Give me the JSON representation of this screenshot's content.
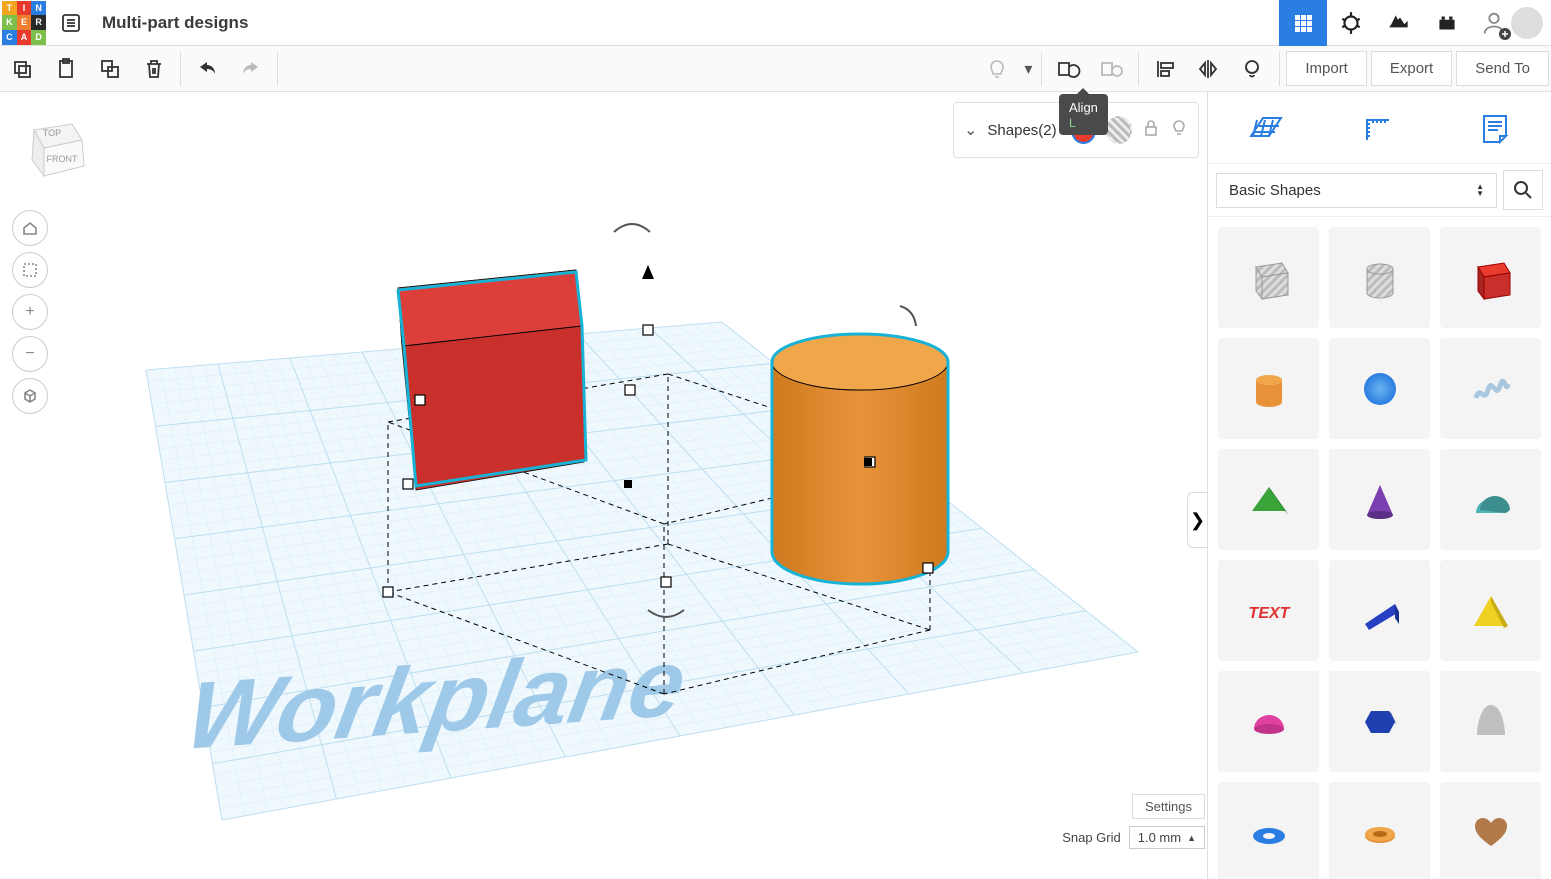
{
  "logo": {
    "cells": [
      {
        "t": "T",
        "c": "#f5a51d"
      },
      {
        "t": "I",
        "c": "#e83b2e"
      },
      {
        "t": "N",
        "c": "#2a7de1"
      },
      {
        "t": "K",
        "c": "#7cc04b"
      },
      {
        "t": "E",
        "c": "#ef7f2f"
      },
      {
        "t": "R",
        "c": "#2a2a2a"
      },
      {
        "t": "C",
        "c": "#2a7de1"
      },
      {
        "t": "A",
        "c": "#e83b2e"
      },
      {
        "t": "D",
        "c": "#7cc04b"
      }
    ]
  },
  "project": {
    "title": "Multi-part designs"
  },
  "header_apps": [
    {
      "name": "bricks",
      "active": true
    },
    {
      "name": "circuits",
      "active": false
    },
    {
      "name": "codeblocks",
      "active": false
    },
    {
      "name": "lego",
      "active": false
    }
  ],
  "toolbar": {
    "copy": "Copy",
    "paste": "Paste",
    "dup": "Duplicate",
    "delete": "Delete",
    "undo": "Undo",
    "redo": "Redo",
    "bulb": "Show/Hide",
    "group": "Group",
    "ungroup": "Ungroup",
    "align": "Align",
    "mirror": "Mirror",
    "cruise": "Cruise",
    "import": "Import",
    "export": "Export",
    "sendto": "Send To"
  },
  "tooltip": {
    "title": "Align",
    "key": "L"
  },
  "viewcube": {
    "top": "TOP",
    "front": "FRONT"
  },
  "nav": [
    "home",
    "fit",
    "zoom-in",
    "zoom-out",
    "ortho"
  ],
  "inspector": {
    "label": "Shapes(2)",
    "solid_color": "#e83b2e"
  },
  "workplane": {
    "label": "Workplane",
    "label_color": "#9fc9e8",
    "grid_minor": "#dceef8",
    "grid_major": "#bedef0",
    "selection_stroke": "#17b3d6"
  },
  "scene": {
    "box": {
      "top": "#dc3f3a",
      "front": "#c9302c",
      "side": "#b12a26"
    },
    "cylinder": {
      "top": "#f0a64a",
      "side_light": "#e8923a",
      "side_dark": "#d07a1f"
    }
  },
  "rpanel": {
    "tabs": [
      "workplane",
      "ruler",
      "notes"
    ],
    "category": "Basic Shapes",
    "shapes": [
      {
        "name": "box-hole",
        "type": "hole-cube"
      },
      {
        "name": "cylinder-hole",
        "type": "hole-cyl"
      },
      {
        "name": "box",
        "type": "cube",
        "c": "#e83b2e"
      },
      {
        "name": "cylinder",
        "type": "cyl",
        "c": "#e8923a"
      },
      {
        "name": "sphere",
        "type": "sphere",
        "c": "#2a7de1"
      },
      {
        "name": "scribble",
        "type": "scribble",
        "c": "#aac7e0"
      },
      {
        "name": "roof",
        "type": "roof",
        "c": "#3aa33a"
      },
      {
        "name": "cone",
        "type": "cone",
        "c": "#7a3fb0"
      },
      {
        "name": "round-roof",
        "type": "rroof",
        "c": "#4fb3b3"
      },
      {
        "name": "text",
        "type": "text",
        "c": "#e03030"
      },
      {
        "name": "wedge",
        "type": "wedge",
        "c": "#2540c0"
      },
      {
        "name": "pyramid",
        "type": "pyramid",
        "c": "#f0d020"
      },
      {
        "name": "half-sphere",
        "type": "hsphere",
        "c": "#e040a0"
      },
      {
        "name": "hexagon",
        "type": "hex",
        "c": "#2040b0"
      },
      {
        "name": "paraboloid",
        "type": "parab",
        "c": "#bfbfbf"
      },
      {
        "name": "torus",
        "type": "torus",
        "c": "#2a7de1"
      },
      {
        "name": "tube",
        "type": "tube",
        "c": "#e8923a"
      },
      {
        "name": "heart",
        "type": "heart",
        "c": "#b07a4a"
      }
    ]
  },
  "footer": {
    "settings": "Settings",
    "snapgrid_label": "Snap Grid",
    "snapgrid_value": "1.0 mm"
  }
}
